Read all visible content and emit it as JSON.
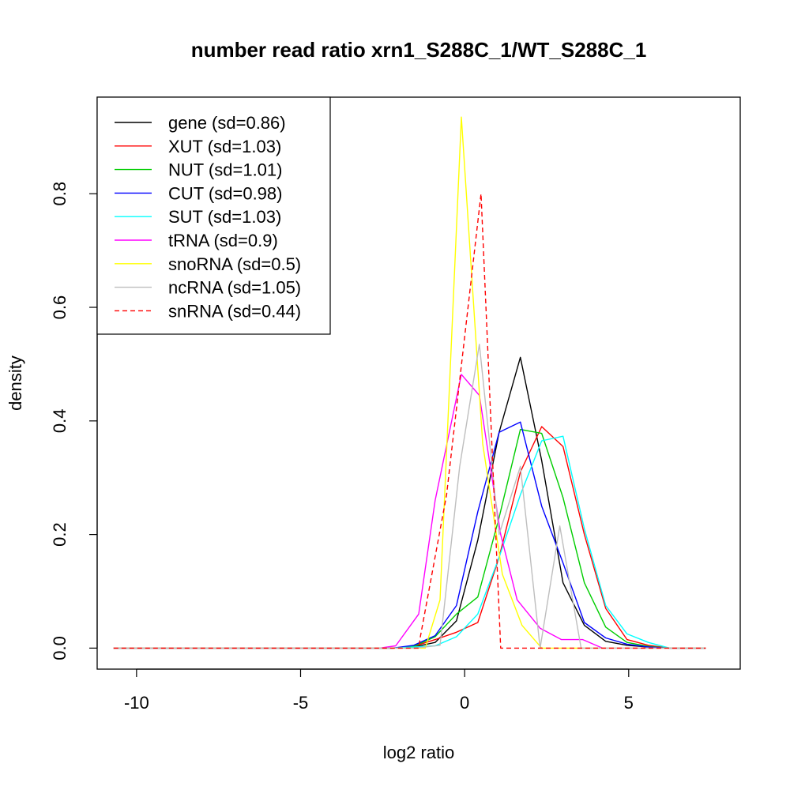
{
  "chart_data": {
    "type": "line",
    "title": "number read ratio xrn1_S288C_1/WT_S288C_1",
    "xlabel": "log2 ratio",
    "ylabel": "density",
    "xlim": [
      -11.2,
      8.4
    ],
    "ylim": [
      -0.037,
      0.97
    ],
    "xticks": [
      {
        "value": -10,
        "label": "-10"
      },
      {
        "value": -5,
        "label": "-5"
      },
      {
        "value": 0,
        "label": "0"
      },
      {
        "value": 5,
        "label": "5"
      }
    ],
    "yticks": [
      {
        "value": 0.0,
        "label": "0.0"
      },
      {
        "value": 0.2,
        "label": "0.2"
      },
      {
        "value": 0.4,
        "label": "0.4"
      },
      {
        "value": 0.6,
        "label": "0.6"
      },
      {
        "value": 0.8,
        "label": "0.8"
      }
    ],
    "grid": false,
    "legend_position": "top-left",
    "series": [
      {
        "name": "gene (sd=0.86)",
        "color": "#000000",
        "dash": "solid",
        "x": [
          -10.7,
          -2.2,
          -1.55,
          -0.9,
          -0.25,
          0.4,
          1.05,
          1.7,
          2.35,
          3.0,
          3.65,
          4.3,
          4.95,
          5.6,
          6.25,
          7.35
        ],
        "y": [
          0,
          0,
          0.002,
          0.01,
          0.048,
          0.19,
          0.38,
          0.512,
          0.33,
          0.115,
          0.04,
          0.012,
          0.005,
          0.002,
          0,
          0
        ]
      },
      {
        "name": "XUT (sd=1.03)",
        "color": "#ff0000",
        "dash": "solid",
        "x": [
          -10.7,
          -2.2,
          -1.55,
          -0.9,
          -0.25,
          0.4,
          1.05,
          1.7,
          2.35,
          3.0,
          3.65,
          4.3,
          4.95,
          5.6,
          6.25,
          7.35
        ],
        "y": [
          0,
          0,
          0.003,
          0.015,
          0.028,
          0.045,
          0.16,
          0.31,
          0.39,
          0.355,
          0.2,
          0.07,
          0.015,
          0.005,
          0,
          0
        ]
      },
      {
        "name": "NUT (sd=1.01)",
        "color": "#00cd00",
        "dash": "solid",
        "x": [
          -10.7,
          -2.2,
          -1.55,
          -0.9,
          -0.25,
          0.4,
          1.05,
          1.7,
          2.35,
          3.0,
          3.65,
          4.3,
          4.95,
          5.6,
          6.25,
          7.35
        ],
        "y": [
          0,
          0,
          0.003,
          0.02,
          0.06,
          0.09,
          0.23,
          0.385,
          0.378,
          0.265,
          0.115,
          0.037,
          0.01,
          0.003,
          0,
          0
        ]
      },
      {
        "name": "CUT (sd=0.98)",
        "color": "#0000ff",
        "dash": "solid",
        "x": [
          -10.7,
          -2.2,
          -1.55,
          -0.9,
          -0.25,
          0.4,
          1.05,
          1.7,
          2.35,
          3.0,
          3.65,
          4.3,
          4.95,
          5.6,
          6.25,
          7.35
        ],
        "y": [
          0,
          0,
          0.005,
          0.022,
          0.075,
          0.24,
          0.38,
          0.398,
          0.25,
          0.15,
          0.045,
          0.018,
          0.007,
          0.002,
          0,
          0
        ]
      },
      {
        "name": "SUT (sd=1.03)",
        "color": "#00ffff",
        "dash": "solid",
        "x": [
          -10.7,
          -2.2,
          -1.55,
          -0.9,
          -0.25,
          0.4,
          1.05,
          1.7,
          2.35,
          3.0,
          3.65,
          4.3,
          4.95,
          5.6,
          6.25,
          7.35
        ],
        "y": [
          0,
          0,
          0.002,
          0.004,
          0.02,
          0.06,
          0.16,
          0.27,
          0.365,
          0.373,
          0.21,
          0.075,
          0.025,
          0.01,
          0,
          0
        ]
      },
      {
        "name": "tRNA (sd=0.9)",
        "color": "#ff00ff",
        "dash": "solid",
        "x": [
          -10.7,
          -2.6,
          -2.1,
          -1.4,
          -0.9,
          -0.1,
          0.45,
          1.1,
          1.6,
          2.3,
          2.95,
          3.6,
          4.2,
          7.35
        ],
        "y": [
          0,
          0,
          0.004,
          0.06,
          0.26,
          0.482,
          0.445,
          0.2,
          0.085,
          0.035,
          0.015,
          0.015,
          0,
          0
        ]
      },
      {
        "name": "snoRNA (sd=0.5)",
        "color": "#ffff00",
        "dash": "solid",
        "x": [
          -10.7,
          -1.2,
          -0.75,
          -0.1,
          0.55,
          1.15,
          1.75,
          2.35,
          7.35
        ],
        "y": [
          0,
          0,
          0.085,
          0.935,
          0.36,
          0.13,
          0.04,
          0,
          0
        ]
      },
      {
        "name": "ncRNA (sd=1.05)",
        "color": "#bebebe",
        "dash": "solid",
        "x": [
          -10.7,
          -1.5,
          -0.75,
          -0.15,
          0.45,
          1.05,
          1.7,
          2.3,
          2.9,
          3.55,
          7.35
        ],
        "y": [
          0,
          0,
          0.005,
          0.32,
          0.535,
          0.2,
          0.32,
          0,
          0.215,
          0,
          0
        ]
      },
      {
        "name": "snRNA (sd=0.44)",
        "color": "#ff0000",
        "dash": "dashed",
        "x": [
          -10.7,
          -1.4,
          -1.35,
          -0.55,
          0.5,
          1.1,
          7.35
        ],
        "y": [
          0,
          0,
          0.02,
          0.27,
          0.8,
          0,
          0
        ]
      }
    ]
  }
}
